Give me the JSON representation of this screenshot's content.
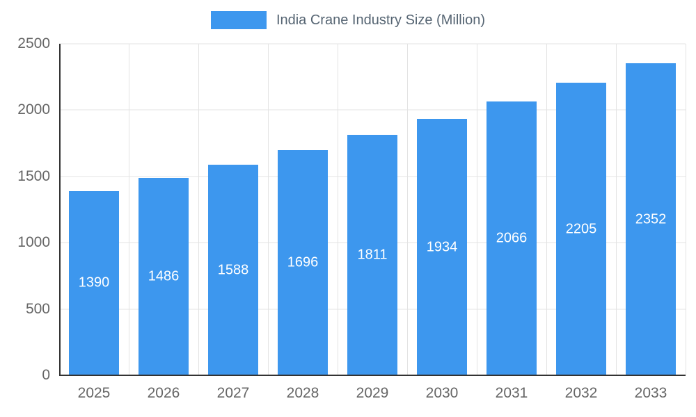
{
  "chart_data": {
    "type": "bar",
    "title": "India Crane Industry Size (Million)",
    "legend_position": "top",
    "categories": [
      "2025",
      "2026",
      "2027",
      "2028",
      "2029",
      "2030",
      "2031",
      "2032",
      "2033"
    ],
    "values": [
      1390,
      1486,
      1588,
      1696,
      1811,
      1934,
      2066,
      2205,
      2352
    ],
    "ylim": [
      0,
      2500
    ],
    "yticks": [
      0,
      500,
      1000,
      1500,
      2000,
      2500
    ],
    "grid": true,
    "value_labels_inside_bars": true,
    "colors": {
      "bar": "#3d97ee",
      "grid": "#e3e3e3",
      "axis": "#333333",
      "tick_label": "#666666",
      "legend_text": "#566573",
      "value_label": "#ffffff",
      "background": "#ffffff"
    }
  }
}
